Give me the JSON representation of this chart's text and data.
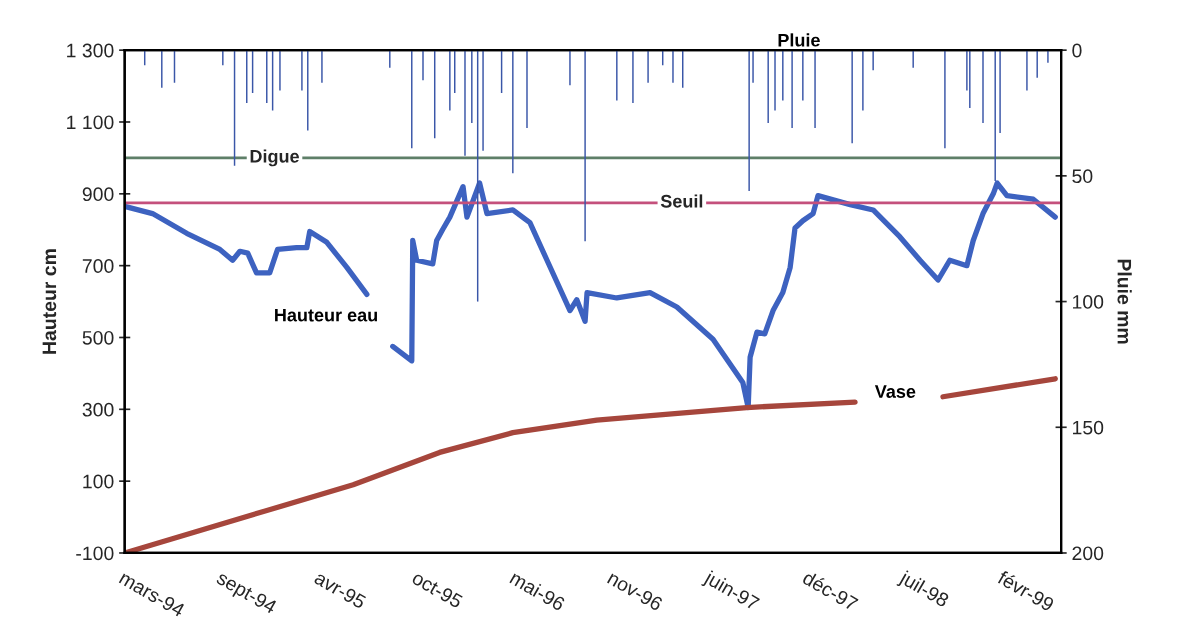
{
  "chart_data": {
    "type": "line",
    "ylabel": "Hauteur cm",
    "y2label": "Pluie mm",
    "xlim": [
      "1994-03-01",
      "1999-06-01"
    ],
    "xticks": [
      {
        "value": "1994-03-01",
        "label": "mars-94"
      },
      {
        "value": "1994-09-17",
        "label": "sept-94"
      },
      {
        "value": "1995-04-05",
        "label": "avr-95"
      },
      {
        "value": "1995-10-22",
        "label": "oct-95"
      },
      {
        "value": "1996-05-09",
        "label": "mai-96"
      },
      {
        "value": "1996-11-25",
        "label": "nov-96"
      },
      {
        "value": "1997-06-13",
        "label": "juin-97"
      },
      {
        "value": "1997-12-30",
        "label": "déc-97"
      },
      {
        "value": "1998-07-18",
        "label": "juil-98"
      },
      {
        "value": "1999-02-03",
        "label": "févr-99"
      }
    ],
    "ylim": [
      -100,
      1300
    ],
    "yticks": [
      -100,
      100,
      300,
      500,
      700,
      900,
      {
        "value": 1100,
        "label": "1 100"
      },
      {
        "value": 1300,
        "label": "1 300"
      }
    ],
    "y2lim": [
      200,
      0
    ],
    "y2ticks": [
      0,
      50,
      100,
      150,
      200
    ],
    "series": [
      {
        "name": "Pluie",
        "type": "bar",
        "axis": "y2",
        "color": "#3a56a8",
        "x": [
          "1994-04-11",
          "1994-05-16",
          "1994-06-11",
          "1994-09-18",
          "1994-10-12",
          "1994-11-06",
          "1994-11-18",
          "1994-12-17",
          "1994-12-29",
          "1995-01-13",
          "1995-02-27",
          "1995-03-11",
          "1995-04-09",
          "1995-08-26",
          "1995-10-10",
          "1995-11-02",
          "1995-11-26",
          "1995-12-27",
          "1996-01-06",
          "1996-01-27",
          "1996-02-10",
          "1996-02-22",
          "1996-03-04",
          "1996-04-11",
          "1996-05-04",
          "1996-06-02",
          "1996-08-29",
          "1996-09-29",
          "1996-12-03",
          "1997-01-05",
          "1997-02-05",
          "1997-03-07",
          "1997-03-28",
          "1997-04-17",
          "1997-08-31",
          "1997-09-08",
          "1997-10-09",
          "1997-10-23",
          "1997-11-08",
          "1997-11-27",
          "1997-12-19",
          "1998-01-13",
          "1998-03-30",
          "1998-04-21",
          "1998-05-12",
          "1998-08-02",
          "1998-10-06",
          "1998-11-20",
          "1998-11-26",
          "1998-12-23",
          "1999-01-17",
          "1999-01-27",
          "1999-03-23",
          "1999-04-13",
          "1999-05-05"
        ],
        "values": [
          6,
          15,
          13,
          6,
          46,
          21,
          17,
          21,
          24,
          16,
          16,
          32,
          13,
          7,
          39,
          12,
          35,
          24,
          17,
          42,
          29,
          100,
          40,
          17,
          49,
          31,
          14,
          76,
          20,
          21,
          13,
          6,
          13,
          15,
          56,
          13,
          29,
          24,
          20,
          31,
          20,
          31,
          37,
          24,
          8,
          7,
          39,
          16,
          23,
          29,
          52,
          33,
          16,
          11,
          5
        ]
      },
      {
        "name": "Hauteur eau",
        "color": "#3d62c0",
        "x": [
          "1994-03-01",
          "1994-04-27",
          "1994-07-06",
          "1994-09-12",
          "1994-10-08",
          "1994-10-23",
          "1994-11-08",
          "1994-11-26",
          "1994-12-23",
          "1995-01-08",
          "1995-02-16",
          "1995-03-09",
          "1995-03-15",
          "1995-04-19",
          "1995-05-30",
          "1995-07-10",
          "1995-08-01",
          "1995-09-01",
          "1995-10-10",
          "1995-10-12",
          "1995-10-20",
          "1995-11-22",
          "1995-11-30",
          "1995-12-12",
          "1995-12-27",
          "1996-01-23",
          "1996-01-31",
          "1996-02-26",
          "1996-03-12",
          "1996-05-04",
          "1996-06-08",
          "1996-07-13",
          "1996-08-29",
          "1996-09-12",
          "1996-09-29",
          "1996-10-03",
          "1996-12-03",
          "1997-02-09",
          "1997-04-05",
          "1997-06-18",
          "1997-08-18",
          "1997-08-29",
          "1997-09-02",
          "1997-09-16",
          "1997-10-02",
          "1997-10-19",
          "1997-11-08",
          "1997-11-23",
          "1997-12-03",
          "1997-12-19",
          "1998-01-09",
          "1998-01-19",
          "1998-03-26",
          "1998-05-12",
          "1998-07-06",
          "1998-08-16",
          "1998-09-22",
          "1998-10-16",
          "1998-11-20",
          "1998-12-03",
          "1998-12-23",
          "1999-01-13",
          "1999-01-21",
          "1999-02-10",
          "1999-04-05",
          "1999-05-20"
        ],
        "values": [
          865,
          845,
          790,
          745,
          715,
          740,
          735,
          680,
          680,
          745,
          750,
          750,
          795,
          765,
          695,
          620,
          null,
          475,
          435,
          770,
          715,
          705,
          770,
          800,
          835,
          920,
          835,
          930,
          845,
          855,
          820,
          715,
          575,
          605,
          545,
          625,
          610,
          625,
          585,
          495,
          375,
          305,
          445,
          515,
          510,
          575,
          625,
          695,
          805,
          825,
          845,
          895,
          870,
          855,
          780,
          715,
          660,
          715,
          700,
          770,
          845,
          900,
          930,
          895,
          885,
          835
        ]
      },
      {
        "name": "Vase",
        "color": "#a6463c",
        "x": [
          "1994-03-01",
          "1995-06-12",
          "1995-12-06",
          "1996-05-04",
          "1996-10-23",
          "1997-08-26",
          "1998-04-05",
          "1998-06-01",
          "1998-10-02",
          "1999-05-20"
        ],
        "values": [
          -100,
          90,
          180,
          235,
          270,
          305,
          320,
          null,
          335,
          385
        ]
      }
    ],
    "ref_lines": [
      {
        "axis": "y",
        "value": 1000,
        "label": "Digue",
        "color": "#5e7f68"
      },
      {
        "axis": "y",
        "value": 875,
        "label": "Seuil",
        "color": "#c4507c"
      }
    ]
  }
}
